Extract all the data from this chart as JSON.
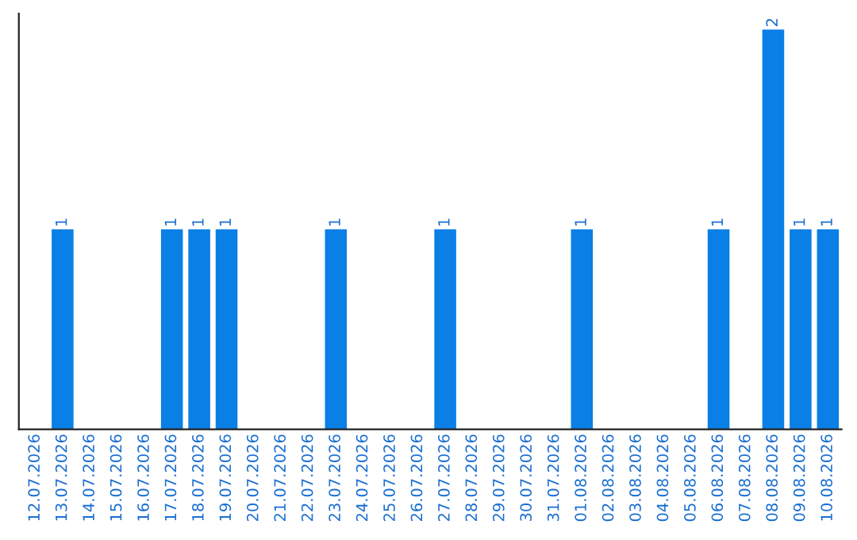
{
  "chart_data": {
    "type": "bar",
    "categories": [
      "12.07.2026",
      "13.07.2026",
      "14.07.2026",
      "15.07.2026",
      "16.07.2026",
      "17.07.2026",
      "18.07.2026",
      "19.07.2026",
      "20.07.2026",
      "21.07.2026",
      "22.07.2026",
      "23.07.2026",
      "24.07.2026",
      "25.07.2026",
      "26.07.2026",
      "27.07.2026",
      "28.07.2026",
      "29.07.2026",
      "30.07.2026",
      "31.07.2026",
      "01.08.2026",
      "02.08.2026",
      "03.08.2026",
      "04.08.2026",
      "05.08.2026",
      "06.08.2026",
      "07.08.2026",
      "08.08.2026",
      "09.08.2026",
      "10.08.2026"
    ],
    "values": [
      0,
      1,
      0,
      0,
      0,
      1,
      1,
      1,
      0,
      0,
      0,
      1,
      0,
      0,
      0,
      1,
      0,
      0,
      0,
      0,
      1,
      0,
      0,
      0,
      0,
      1,
      0,
      2,
      1,
      1
    ],
    "value_labels": [
      null,
      "1",
      null,
      null,
      null,
      "1",
      "1",
      "1",
      null,
      null,
      null,
      "1",
      null,
      null,
      null,
      "1",
      null,
      null,
      null,
      null,
      "1",
      null,
      null,
      null,
      null,
      "1",
      null,
      "2",
      "1",
      "1"
    ],
    "color": "#0a7fe6",
    "tick_labels": "x",
    "grid": false,
    "legend": false
  }
}
